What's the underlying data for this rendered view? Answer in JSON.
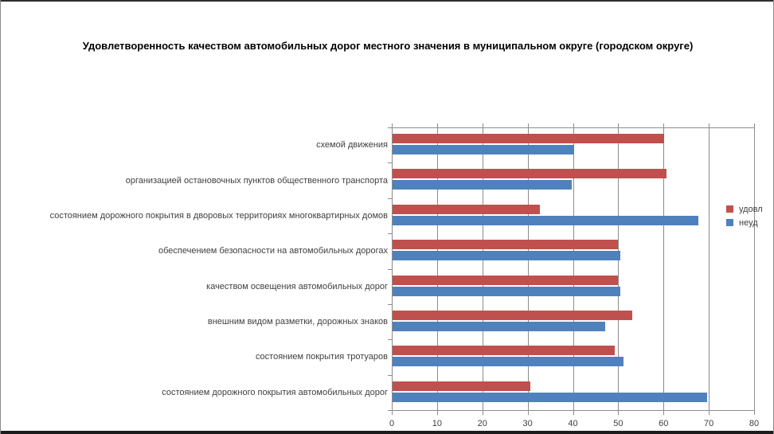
{
  "title": "Удовлетворенность качеством автомобильных дорог местного значения в муниципальном округе (городском округе)",
  "legend": {
    "satisfied_label": "удовл",
    "dissatisfied_label": "неуд"
  },
  "colors": {
    "satisfied": "#C0504D",
    "dissatisfied": "#4F81BD",
    "gridline": "#8C8C8C",
    "label_text": "#3F3F3F"
  },
  "chart_data": {
    "type": "bar",
    "orientation": "horizontal",
    "title": "Удовлетворенность качеством автомобильных дорог местного значения в муниципальном округе (городском округе)",
    "categories": [
      "схемой движения",
      "организацией остановочных пунктов общественного транспорта",
      "состоянием дорожного покрытия в дворовых территориях многоквартирных домов",
      "обеспечением безопасности на автомобильных дорогах",
      "качеством освещения автомобильных дорог",
      "внешним видом разметки, дорожных знаков",
      "состоянием покрытия тротуаров",
      "состоянием дорожного покрытия автомобильных дорог"
    ],
    "series": [
      {
        "name": "удовл",
        "color": "#C0504D",
        "values": [
          60,
          60.5,
          32.5,
          49.7,
          49.7,
          53,
          49,
          30.5
        ]
      },
      {
        "name": "неуд",
        "color": "#4F81BD",
        "values": [
          40,
          39.5,
          67.5,
          50.3,
          50.3,
          47,
          51,
          69.5
        ]
      }
    ],
    "xlabel": "",
    "ylabel": "",
    "xlim": [
      0,
      80
    ],
    "x_ticks": [
      0,
      10,
      20,
      30,
      40,
      50,
      60,
      70,
      80
    ],
    "grid": "vertical",
    "legend_position": "right"
  }
}
